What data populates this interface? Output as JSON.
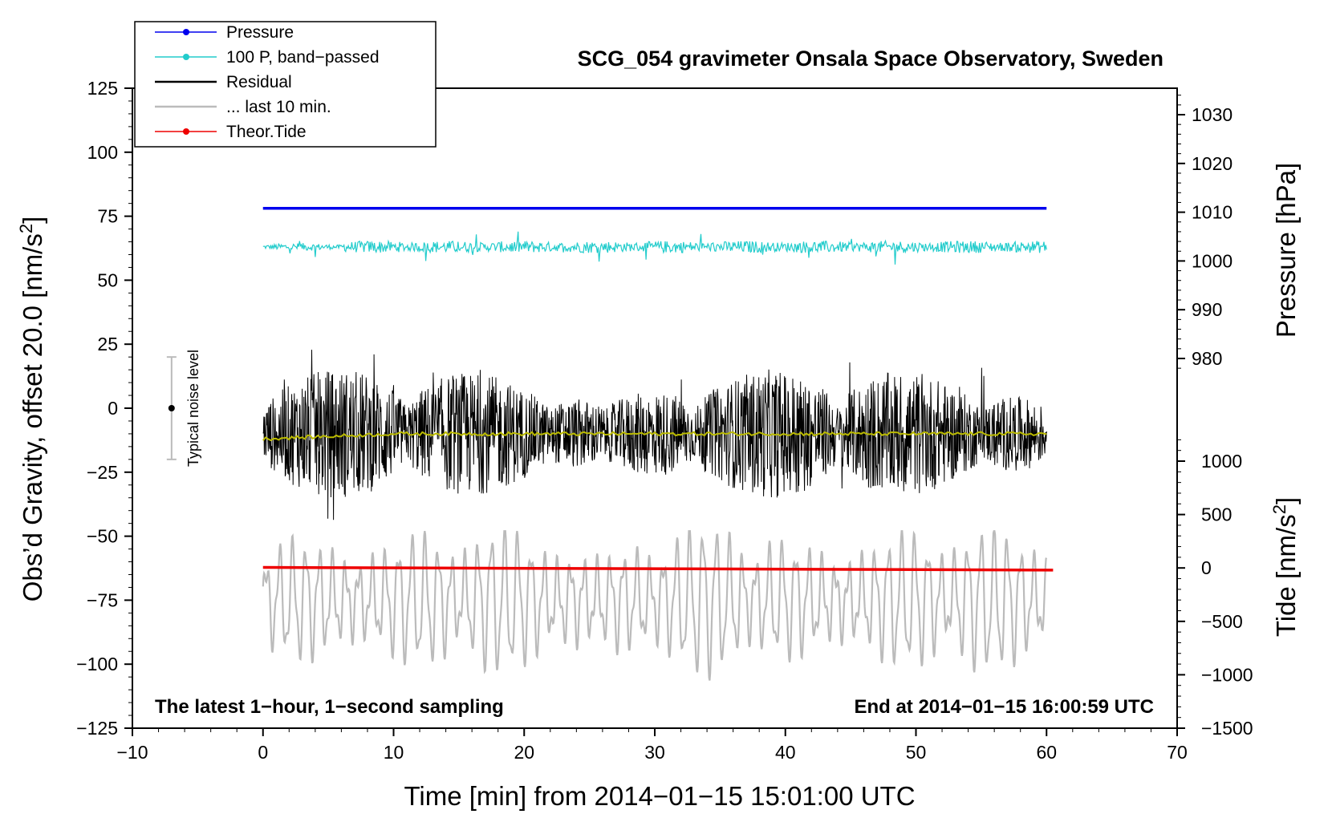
{
  "chart_data": {
    "type": "line",
    "title": "SCG_054 gravimeter Onsala Space Observatory, Sweden",
    "xlabel": "Time [min] from 2014−01−15 15:01:00 UTC",
    "ylabel_left": "Obs’d Gravity, offset 20.0 [nm/s²]",
    "ylabel_right_top": "Pressure [hPa]",
    "ylabel_right_bottom": "Tide [nm/s²]",
    "xlim": [
      -10,
      70
    ],
    "ylim_left": [
      -125,
      125
    ],
    "x_ticks": [
      -10,
      0,
      10,
      20,
      30,
      40,
      50,
      60,
      70
    ],
    "x_tick_labels": [
      "−10",
      "0",
      "10",
      "20",
      "30",
      "40",
      "50",
      "60",
      "70"
    ],
    "y_left_ticks": [
      125,
      100,
      75,
      50,
      25,
      0,
      -25,
      -50,
      -75,
      -100,
      -125
    ],
    "y_left_tick_labels": [
      "125",
      "100",
      "75",
      "50",
      "25",
      "0",
      "−25",
      "−50",
      "−75",
      "−100",
      "−125"
    ],
    "pressure_axis": {
      "ticks": [
        1030,
        1020,
        1010,
        1000,
        990,
        980
      ],
      "tick_labels": [
        "1030",
        "1020",
        "1010",
        "1000",
        "990",
        "980"
      ],
      "range": [
        978,
        1036
      ]
    },
    "tide_axis": {
      "ticks": [
        1000,
        500,
        0,
        -500,
        -1000,
        -1500
      ],
      "tick_labels": [
        "1000",
        "500",
        "0",
        "−500",
        "−1000",
        "−1500"
      ],
      "range": [
        -1500,
        1500
      ]
    },
    "legend": [
      {
        "label": "Pressure",
        "color": "#0000ee",
        "marker": true
      },
      {
        "label": "100 P, band−passed",
        "color": "#22cccc",
        "marker": true
      },
      {
        "label": "Residual",
        "color": "#000000",
        "marker": false
      },
      {
        "label": "... last 10 min.",
        "color": "#bbbbbb",
        "marker": false
      },
      {
        "label": "Theor.Tide",
        "color": "#ee0000",
        "marker": true
      }
    ],
    "series": [
      {
        "name": "Pressure",
        "axis": "pressure",
        "x": [
          0,
          60
        ],
        "values": [
          1010.8,
          1010.8
        ],
        "color": "#0000ee"
      },
      {
        "name": "100 P, band−passed",
        "axis": "left",
        "x_range": [
          0,
          60
        ],
        "mean": 63,
        "amplitude_range": [
          54,
          69
        ],
        "color": "#22cccc"
      },
      {
        "name": "Residual",
        "axis": "left",
        "x_range": [
          0,
          60
        ],
        "mean": -10,
        "amplitude_range": [
          -54,
          29
        ],
        "color": "#000000"
      },
      {
        "name": "Residual smoothed",
        "axis": "left",
        "x_range": [
          0,
          60
        ],
        "values": [
          -12,
          -10,
          -10,
          -10,
          -10,
          -10,
          -10
        ],
        "color": "#bbbb00"
      },
      {
        "name": "... last 10 min.",
        "axis": "left",
        "x_range": [
          0,
          60
        ],
        "mean": -75,
        "amplitude_range": [
          -107,
          -48
        ],
        "color": "#bbbbbb"
      },
      {
        "name": "Theor.Tide",
        "axis": "tide",
        "x": [
          0,
          60.5
        ],
        "values": [
          5,
          -20
        ],
        "color": "#ee0000"
      }
    ],
    "noise_indicator": {
      "label": "Typical noise level",
      "x": -7,
      "center": 0,
      "range": [
        -20,
        20
      ]
    },
    "annotations": {
      "bottom_left": "The latest 1−hour, 1−second sampling",
      "bottom_right": "End at 2014−01−15 16:00:59 UTC"
    }
  }
}
